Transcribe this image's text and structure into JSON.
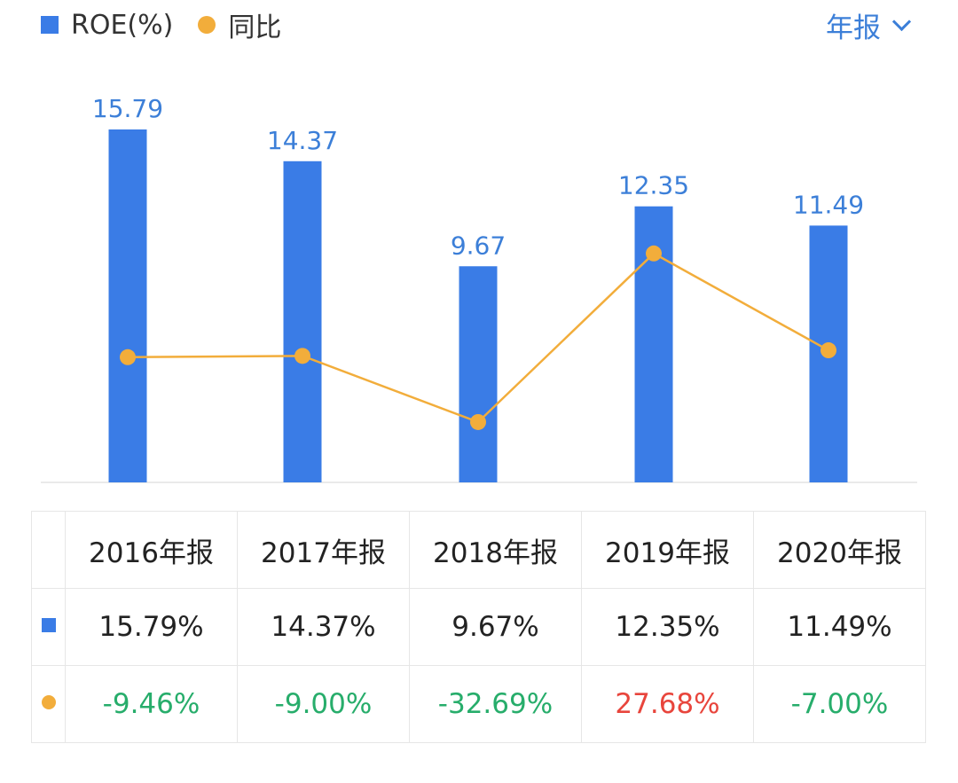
{
  "legend": {
    "roe_label": "ROE(%)",
    "yoy_label": "同比"
  },
  "period_selector": {
    "label": "年报"
  },
  "colors": {
    "bar": "#3a7ce6",
    "line": "#f2ad3b",
    "bar_label": "#3c7fd8",
    "positive": "#e8453c",
    "negative": "#27ad6b"
  },
  "chart_data": {
    "type": "bar",
    "categories": [
      "2016年报",
      "2017年报",
      "2018年报",
      "2019年报",
      "2020年报"
    ],
    "series": [
      {
        "name": "ROE(%)",
        "type": "bar",
        "values": [
          15.79,
          14.37,
          9.67,
          12.35,
          11.49
        ],
        "labels": [
          "15.79",
          "14.37",
          "9.67",
          "12.35",
          "11.49"
        ]
      },
      {
        "name": "同比",
        "type": "line",
        "values": [
          -9.46,
          -9.0,
          -32.69,
          27.68,
          -7.0
        ]
      }
    ],
    "grid": false,
    "legend_position": "top-left"
  },
  "table": {
    "headers": [
      "2016年报",
      "2017年报",
      "2018年报",
      "2019年报",
      "2020年报"
    ],
    "roe_row": [
      "15.79%",
      "14.37%",
      "9.67%",
      "12.35%",
      "11.49%"
    ],
    "yoy_row": [
      "-9.46%",
      "-9.00%",
      "-32.69%",
      "27.68%",
      "-7.00%"
    ]
  }
}
